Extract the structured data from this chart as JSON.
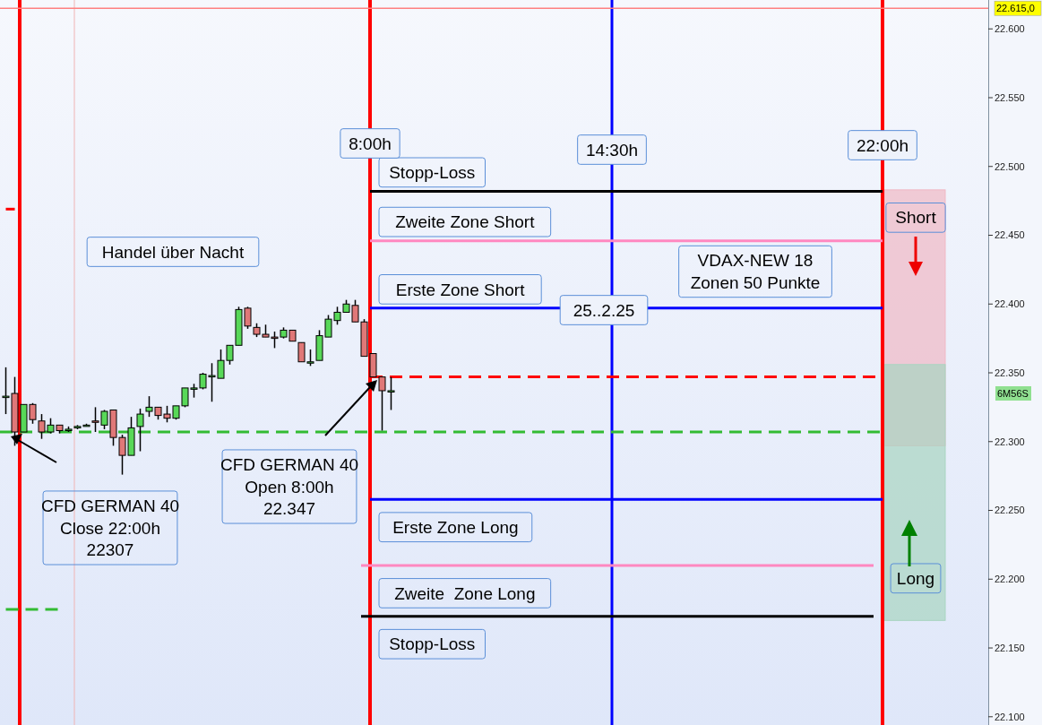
{
  "chart_data": {
    "type": "candlestick",
    "categories": [
      null,
      null,
      null,
      null,
      null,
      null,
      null,
      null,
      null,
      null,
      null,
      null,
      null,
      null,
      null,
      null,
      null,
      null,
      null,
      null,
      null,
      null,
      null,
      null,
      null,
      null,
      null,
      null,
      null,
      null,
      null,
      null,
      null,
      null,
      null,
      null,
      null,
      null,
      null,
      null,
      null,
      null,
      null,
      null,
      null,
      null,
      null,
      null,
      null,
      null,
      null,
      null,
      null,
      null,
      null,
      null,
      null,
      null,
      null,
      null,
      null,
      null,
      null,
      null,
      null,
      null,
      null,
      null,
      null,
      null,
      null,
      null,
      null,
      null,
      null,
      null,
      null,
      null,
      null,
      null,
      null,
      null,
      null,
      null,
      null,
      null,
      null,
      null,
      null,
      null,
      null,
      null,
      null,
      null,
      null,
      null,
      null,
      null,
      null,
      null,
      null,
      null,
      null,
      null,
      null,
      null,
      null,
      null,
      null,
      null
    ],
    "ohlc": [
      [
        22333,
        22354,
        22320,
        22333
      ],
      [
        22335,
        22347,
        22297,
        22307
      ],
      [
        22307,
        22327,
        22307,
        22327
      ],
      [
        22327,
        22328,
        22313,
        22316
      ],
      [
        22315,
        22320,
        22302,
        22307
      ],
      [
        22307,
        22317,
        22306,
        22312
      ],
      [
        22312,
        22312,
        22306,
        22308
      ],
      [
        22308,
        22311,
        22307,
        22309
      ],
      [
        22310,
        22312,
        22309,
        22311
      ],
      [
        22312,
        22313,
        22311,
        22312
      ],
      [
        22315,
        22325,
        22307,
        22314
      ],
      [
        22312,
        22323,
        22309,
        22322
      ],
      [
        22323,
        22323,
        22297,
        22303
      ],
      [
        22303,
        22305,
        22276,
        22290
      ],
      [
        22290,
        22318,
        22290,
        22310
      ],
      [
        22311,
        22324,
        22293,
        22320
      ],
      [
        22322,
        22333,
        22318,
        22325
      ],
      [
        22325,
        22325,
        22316,
        22319
      ],
      [
        22320,
        22326,
        22314,
        22317
      ],
      [
        22317,
        22326,
        22316,
        22326
      ],
      [
        22326,
        22339,
        22325,
        22339
      ],
      [
        22339,
        22342,
        22332,
        22339
      ],
      [
        22339,
        22350,
        22338,
        22349
      ],
      [
        22348,
        22357,
        22329,
        22348
      ],
      [
        22346,
        22367,
        22346,
        22359
      ],
      [
        22359,
        22370,
        22356,
        22370
      ],
      [
        22370,
        22398,
        22370,
        22396
      ],
      [
        22397,
        22398,
        22382,
        22384
      ],
      [
        22383,
        22386,
        22376,
        22378
      ],
      [
        22378,
        22385,
        22376,
        22376
      ],
      [
        22376,
        22380,
        22368,
        22375
      ],
      [
        22376,
        22383,
        22375,
        22381
      ],
      [
        22381,
        22381,
        22373,
        22373
      ],
      [
        22372,
        22372,
        22358,
        22358
      ],
      [
        22358,
        22367,
        22355,
        22358
      ],
      [
        22359,
        22381,
        22359,
        22377
      ],
      [
        22376,
        22392,
        22376,
        22389
      ],
      [
        22388,
        22398,
        22385,
        22394
      ],
      [
        22394,
        22403,
        22394,
        22400
      ],
      [
        22399,
        22403,
        22387,
        22387
      ],
      [
        22387,
        22389,
        22362,
        22362
      ],
      [
        22364,
        22364,
        22347,
        22347
      ],
      [
        22347,
        22347,
        22308,
        22337
      ],
      [
        22337,
        22347,
        22323,
        22337
      ],
      null,
      null,
      null,
      null,
      null,
      null,
      null,
      null,
      null,
      null,
      null,
      null,
      null,
      null,
      null,
      null,
      null,
      null,
      null,
      null,
      null,
      null,
      null,
      null,
      null,
      null,
      null,
      null,
      null,
      null,
      null,
      null,
      null,
      null,
      null,
      null,
      null,
      null,
      null,
      null,
      null,
      null,
      null,
      null,
      null,
      null,
      null,
      null,
      null,
      null,
      null,
      null,
      null,
      null,
      null,
      null,
      null,
      null,
      null,
      null,
      null,
      null,
      null,
      null,
      null,
      null
    ],
    "ylim": [
      22094,
      22621
    ],
    "yticks": [
      {
        "value": 22100,
        "label": "22.100"
      },
      {
        "value": 22150,
        "label": "22.150"
      },
      {
        "value": 22200,
        "label": "22.200"
      },
      {
        "value": 22250,
        "label": "22.250"
      },
      {
        "value": 22300,
        "label": "22.300"
      },
      {
        "value": 22350,
        "label": "22.350"
      },
      {
        "value": 22400,
        "label": "22.400"
      },
      {
        "value": 22450,
        "label": "22.450"
      },
      {
        "value": 22500,
        "label": "22.500"
      },
      {
        "value": 22550,
        "label": "22.550"
      },
      {
        "value": 22600,
        "label": "22.600"
      }
    ],
    "tick_labels": "y",
    "ref_lines": [
      {
        "axis": "y",
        "value": 22482,
        "label": "Stopp-Loss",
        "color": "#000000"
      },
      {
        "axis": "y",
        "value": 22446,
        "label": "Zweite Zone Short",
        "color": "#ff88c0"
      },
      {
        "axis": "y",
        "value": 22397,
        "label": "Erste Zone Short",
        "color": "#0000ff"
      },
      {
        "axis": "y",
        "value": 22347,
        "color": "#ff0000",
        "line_style": "dashed"
      },
      {
        "axis": "y",
        "value": 22307,
        "color": "#33bb33",
        "line_style": "dashed"
      },
      {
        "axis": "y",
        "value": 22258,
        "label": "Erste Zone Long",
        "color": "#0000ff"
      },
      {
        "axis": "y",
        "value": 22210,
        "label": "Zweite  Zone Long",
        "color": "#ff88c0"
      },
      {
        "axis": "y",
        "value": 22173,
        "label": "Stopp-Loss",
        "color": "#000000"
      },
      {
        "axis": "y",
        "value": 22615,
        "label": "22.615,0",
        "color": "#ff8080"
      }
    ],
    "series": [
      {
        "type": "line",
        "color": "#ff0000",
        "values": [
          22469,
          22469,
          null,
          null,
          null,
          null,
          null,
          null,
          null,
          null,
          null,
          null,
          null,
          null,
          null,
          null,
          null,
          null,
          null,
          null,
          null,
          null,
          null,
          null,
          null,
          null,
          null,
          null,
          null,
          null,
          null,
          null,
          null,
          null,
          null,
          null,
          null,
          null,
          null,
          null,
          null,
          null,
          null,
          null,
          null,
          null,
          null,
          null,
          null,
          null,
          null,
          null,
          null,
          null,
          null,
          null,
          null,
          null,
          null,
          null,
          null,
          null,
          null,
          null,
          null,
          null,
          null,
          null,
          null,
          null,
          null,
          null,
          null,
          null,
          null,
          null,
          null,
          null,
          null,
          null,
          null,
          null,
          null,
          null,
          null,
          null,
          null,
          null,
          null,
          null,
          null,
          null,
          null,
          null,
          null,
          null,
          null,
          null,
          null,
          null,
          null,
          null,
          null,
          null,
          null,
          null,
          null,
          null,
          null,
          null
        ]
      },
      {
        "type": "line",
        "color": "#33bb33",
        "line_style": "dashed",
        "values": [
          22178,
          22178,
          22178,
          22178,
          22178,
          22178,
          22178,
          null,
          null,
          null,
          null,
          null,
          null,
          null,
          null,
          null,
          null,
          null,
          null,
          null,
          null,
          null,
          null,
          null,
          null,
          null,
          null,
          null,
          null,
          null,
          null,
          null,
          null,
          null,
          null,
          null,
          null,
          null,
          null,
          null,
          null,
          null,
          null,
          null,
          null,
          null,
          null,
          null,
          null,
          null,
          null,
          null,
          null,
          null,
          null,
          null,
          null,
          null,
          null,
          null,
          null,
          null,
          null,
          null,
          null,
          null,
          null,
          null,
          null,
          null,
          null,
          null,
          null,
          null,
          null,
          null,
          null,
          null,
          null,
          null,
          null,
          null,
          null,
          null,
          null,
          null,
          null,
          null,
          null,
          null,
          null,
          null,
          null,
          null,
          null,
          null,
          null,
          null,
          null,
          null,
          null,
          null,
          null,
          null,
          null,
          null,
          null,
          null,
          null,
          null
        ]
      }
    ],
    "bands": [
      {
        "axis": "y",
        "from": 22297,
        "to": 22483,
        "label": "Short",
        "color": "#f0b8c4"
      },
      {
        "axis": "y",
        "from": 22170,
        "to": 22356,
        "label": "Long",
        "color": "#a8d4c0"
      }
    ],
    "annotations": [
      "8:00h",
      "14:30h",
      "22:00h",
      "Handel über Nacht",
      "VDAX-NEW 18\nZonen 50 Punkte",
      "25..2.25",
      "CFD GERMAN 40\nClose 22:00h\n22307",
      "CFD GERMAN 40\nOpen 8:00h\n22.347",
      "6M56S"
    ]
  }
}
